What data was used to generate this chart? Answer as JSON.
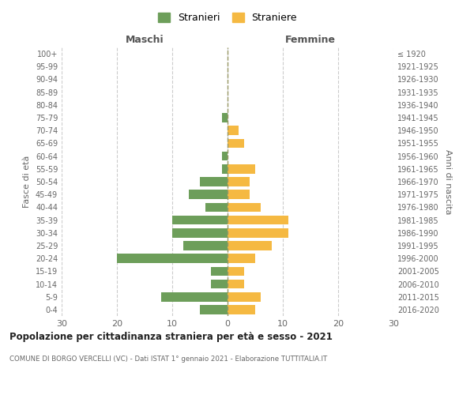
{
  "age_groups": [
    "0-4",
    "5-9",
    "10-14",
    "15-19",
    "20-24",
    "25-29",
    "30-34",
    "35-39",
    "40-44",
    "45-49",
    "50-54",
    "55-59",
    "60-64",
    "65-69",
    "70-74",
    "75-79",
    "80-84",
    "85-89",
    "90-94",
    "95-99",
    "100+"
  ],
  "birth_years": [
    "2016-2020",
    "2011-2015",
    "2006-2010",
    "2001-2005",
    "1996-2000",
    "1991-1995",
    "1986-1990",
    "1981-1985",
    "1976-1980",
    "1971-1975",
    "1966-1970",
    "1961-1965",
    "1956-1960",
    "1951-1955",
    "1946-1950",
    "1941-1945",
    "1936-1940",
    "1931-1935",
    "1926-1930",
    "1921-1925",
    "≤ 1920"
  ],
  "males": [
    5,
    12,
    3,
    3,
    20,
    8,
    10,
    10,
    4,
    7,
    5,
    1,
    1,
    0,
    0,
    1,
    0,
    0,
    0,
    0,
    0
  ],
  "females": [
    5,
    6,
    3,
    3,
    5,
    8,
    11,
    11,
    6,
    4,
    4,
    5,
    0,
    3,
    2,
    0,
    0,
    0,
    0,
    0,
    0
  ],
  "male_color": "#6d9e5a",
  "female_color": "#f5b942",
  "xlabel_left": "Maschi",
  "xlabel_right": "Femmine",
  "ylabel_left": "Fasce di età",
  "ylabel_right": "Anni di nascita",
  "legend_male": "Stranieri",
  "legend_female": "Straniere",
  "title": "Popolazione per cittadinanza straniera per età e sesso - 2021",
  "subtitle": "COMUNE DI BORGO VERCELLI (VC) - Dati ISTAT 1° gennaio 2021 - Elaborazione TUTTITALIA.IT",
  "xlim": 30,
  "bg_color": "#ffffff",
  "grid_color": "#cccccc",
  "bar_height": 0.72
}
